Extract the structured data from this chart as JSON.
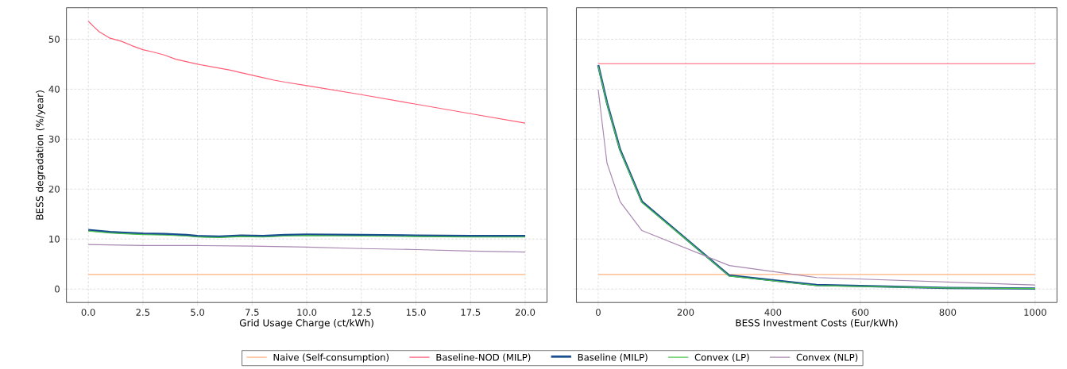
{
  "chart_data": [
    {
      "type": "line",
      "xlabel": "Grid Usage Charge (ct/kWh)",
      "ylabel": "BESS degradation (%/year)",
      "xlim": [
        -1,
        21
      ],
      "ylim": [
        -2.7,
        56.3
      ],
      "xticks": [
        {
          "value": 0,
          "label": "0.0"
        },
        {
          "value": 2.5,
          "label": "2.5"
        },
        {
          "value": 5,
          "label": "5.0"
        },
        {
          "value": 7.5,
          "label": "7.5"
        },
        {
          "value": 10,
          "label": "10.0"
        },
        {
          "value": 12.5,
          "label": "12.5"
        },
        {
          "value": 15,
          "label": "15.0"
        },
        {
          "value": 17.5,
          "label": "17.5"
        },
        {
          "value": 20,
          "label": "20.0"
        }
      ],
      "yticks": [
        0,
        10,
        20,
        30,
        40,
        50
      ],
      "grid": true,
      "legend": "bottom",
      "series": [
        {
          "name": "Naive (Self-consumption)",
          "color": "#ffb27f",
          "x": [
            0,
            20
          ],
          "values": [
            2.9,
            2.9
          ]
        },
        {
          "name": "Baseline-NOD (MILP)",
          "color": "#ff5c75",
          "x": [
            0,
            0.25,
            0.5,
            1,
            1.5,
            2,
            2.5,
            3,
            3.5,
            4,
            5,
            6,
            6.5,
            7,
            8,
            8.5,
            9,
            10,
            12.5,
            15,
            17.5,
            20
          ],
          "values": [
            53.6,
            52.5,
            51.5,
            50.2,
            49.6,
            48.7,
            47.9,
            47.4,
            46.8,
            46.0,
            45.0,
            44.2,
            43.8,
            43.3,
            42.3,
            41.8,
            41.4,
            40.7,
            38.9,
            37.0,
            35.1,
            33.2
          ]
        },
        {
          "name": "Baseline (MILP)",
          "color": "#1a4f8f",
          "x": [
            0,
            1,
            1.5,
            2.5,
            3.5,
            4.5,
            5,
            6,
            7,
            8,
            9,
            10,
            12.5,
            15,
            17.5,
            20
          ],
          "values": [
            11.8,
            11.4,
            11.3,
            11.1,
            11.0,
            10.8,
            10.6,
            10.5,
            10.7,
            10.6,
            10.8,
            10.9,
            10.8,
            10.7,
            10.6,
            10.6
          ]
        },
        {
          "name": "Convex (LP)",
          "color": "#4cc44c",
          "x": [
            0,
            1,
            1.5,
            2.5,
            3.5,
            4.5,
            5,
            6,
            7,
            8,
            9,
            10,
            12.5,
            15,
            17.5,
            20
          ],
          "values": [
            11.6,
            11.2,
            11.1,
            10.9,
            10.8,
            10.6,
            10.4,
            10.3,
            10.5,
            10.4,
            10.6,
            10.7,
            10.6,
            10.5,
            10.4,
            10.4
          ]
        },
        {
          "name": "Convex (NLP)",
          "color": "#a887b0",
          "x": [
            0,
            2.5,
            5,
            7.5,
            10,
            12.5,
            15,
            17.5,
            20
          ],
          "values": [
            8.9,
            8.7,
            8.7,
            8.6,
            8.4,
            8.1,
            7.9,
            7.6,
            7.4
          ]
        }
      ]
    },
    {
      "type": "line",
      "xlabel": "BESS Investment Costs (Eur/kWh)",
      "xlim": [
        -50,
        1050
      ],
      "ylim": [
        -2.7,
        56.3
      ],
      "xticks": [
        0,
        200,
        400,
        600,
        800,
        1000
      ],
      "yticks": [
        0,
        10,
        20,
        30,
        40,
        50
      ],
      "grid": true,
      "tick_labels": "x",
      "series": [
        {
          "color": "#ffb27f",
          "x": [
            0,
            1000
          ],
          "values": [
            2.9,
            2.9
          ]
        },
        {
          "color": "#ff5c75",
          "x": [
            0,
            1000
          ],
          "values": [
            45.1,
            45.1
          ]
        },
        {
          "color": "#1a4f8f",
          "x": [
            0,
            20,
            50,
            100,
            200,
            300,
            500,
            800,
            1000
          ],
          "values": [
            44.8,
            37.3,
            27.9,
            17.5,
            10.1,
            2.7,
            0.8,
            0.2,
            0.1
          ]
        },
        {
          "color": "#4cc44c",
          "x": [
            0,
            20,
            50,
            100,
            200,
            300,
            500,
            800,
            1000
          ],
          "values": [
            44.6,
            37.1,
            27.7,
            17.3,
            10.0,
            2.6,
            0.7,
            0.2,
            0.1
          ]
        },
        {
          "color": "#a887b0",
          "x": [
            0,
            20,
            50,
            100,
            300,
            500,
            1000
          ],
          "values": [
            39.9,
            25.2,
            17.5,
            11.7,
            4.7,
            2.3,
            0.8
          ]
        }
      ]
    }
  ]
}
